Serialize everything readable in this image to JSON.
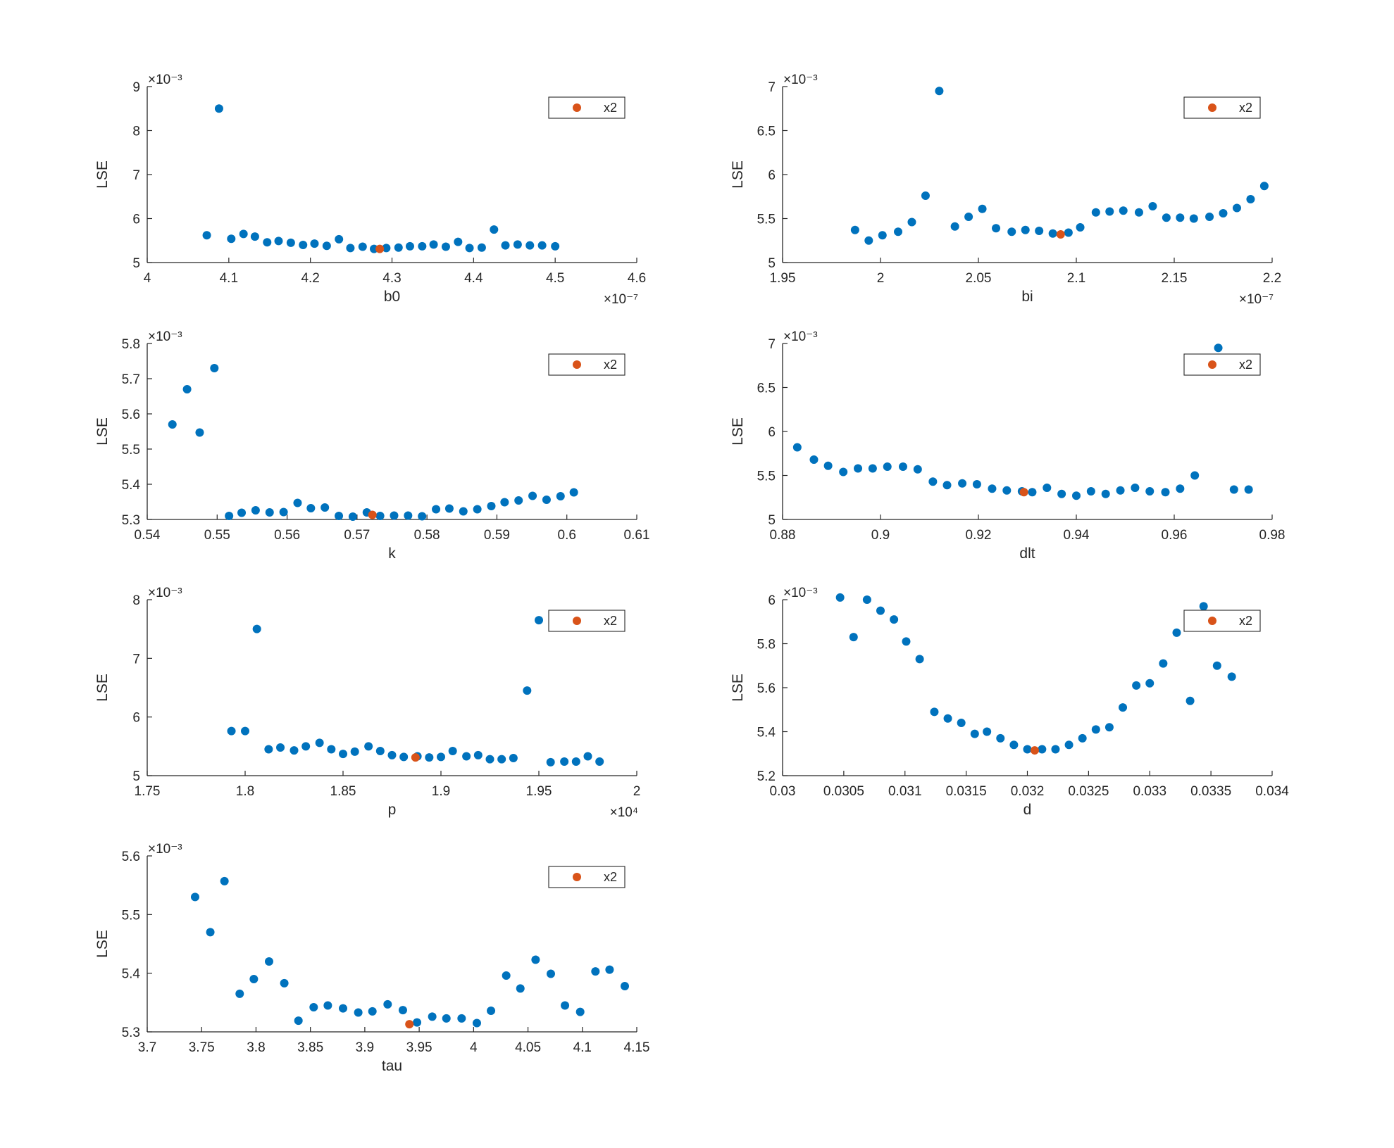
{
  "figure": {
    "background": "#ffffff",
    "colors": {
      "data": "#0072BD",
      "best": "#D95319",
      "axis": "#262626"
    }
  },
  "chart_data": [
    {
      "type": "scatter",
      "id": "b0",
      "xlabel": "b0",
      "ylabel": "LSE",
      "xlim": [
        4,
        4.6
      ],
      "ylim": [
        5,
        9
      ],
      "xticks": [
        "4",
        "4.1",
        "4.2",
        "4.3",
        "4.4",
        "4.5",
        "4.6"
      ],
      "yticks": [
        "5",
        "6",
        "7",
        "8",
        "9"
      ],
      "x_exponent": "×10⁻⁷",
      "y_exponent": "×10⁻³",
      "legend": "x2",
      "series": [
        {
          "x": [
            4.073,
            4.088,
            4.103,
            4.118,
            4.132,
            4.147,
            4.161,
            4.176,
            4.191,
            4.205,
            4.22,
            4.235,
            4.249,
            4.264,
            4.278,
            4.293,
            4.308,
            4.322,
            4.337,
            4.351,
            4.366,
            4.381,
            4.395,
            4.41,
            4.425,
            4.439,
            4.454,
            4.469,
            4.484,
            4.5
          ],
          "y": [
            5.62,
            8.5,
            5.54,
            5.65,
            5.59,
            5.46,
            5.49,
            5.45,
            5.4,
            5.43,
            5.38,
            5.53,
            5.33,
            5.36,
            5.31,
            5.33,
            5.34,
            5.37,
            5.37,
            5.41,
            5.36,
            5.47,
            5.33,
            5.34,
            5.75,
            5.39,
            5.41,
            5.39,
            5.39,
            5.37
          ]
        },
        {
          "name": "x2",
          "x": [
            4.285
          ],
          "y": [
            5.31
          ]
        }
      ]
    },
    {
      "type": "scatter",
      "id": "bi",
      "xlabel": "bi",
      "ylabel": "LSE",
      "xlim": [
        1.95,
        2.2
      ],
      "ylim": [
        5,
        7
      ],
      "xticks": [
        "1.95",
        "2",
        "2.05",
        "2.1",
        "2.15",
        "2.2"
      ],
      "yticks": [
        "5",
        "5.5",
        "6",
        "6.5",
        "7"
      ],
      "x_exponent": "×10⁻⁷",
      "y_exponent": "×10⁻³",
      "legend": "x2",
      "series": [
        {
          "x": [
            1.987,
            1.994,
            2.001,
            2.009,
            2.016,
            2.023,
            2.03,
            2.038,
            2.045,
            2.052,
            2.059,
            2.067,
            2.074,
            2.081,
            2.088,
            2.096,
            2.102,
            2.11,
            2.117,
            2.124,
            2.132,
            2.139,
            2.146,
            2.153,
            2.16,
            2.168,
            2.175,
            2.182,
            2.189,
            2.196
          ],
          "y": [
            5.37,
            5.25,
            5.31,
            5.35,
            5.46,
            5.76,
            6.95,
            5.41,
            5.52,
            5.61,
            5.39,
            5.35,
            5.37,
            5.36,
            5.33,
            5.34,
            5.4,
            5.57,
            5.58,
            5.59,
            5.57,
            5.64,
            5.51,
            5.51,
            5.5,
            5.52,
            5.56,
            5.62,
            5.72,
            5.87
          ]
        },
        {
          "name": "x2",
          "x": [
            2.092
          ],
          "y": [
            5.32
          ]
        }
      ]
    },
    {
      "type": "scatter",
      "id": "k",
      "xlabel": "k",
      "ylabel": "LSE",
      "xlim": [
        0.54,
        0.61
      ],
      "ylim": [
        5.3,
        5.8
      ],
      "xticks": [
        "0.54",
        "0.55",
        "0.56",
        "0.57",
        "0.58",
        "0.59",
        "0.6",
        "0.61"
      ],
      "yticks": [
        "5.3",
        "5.4",
        "5.5",
        "5.6",
        "5.7",
        "5.8"
      ],
      "x_exponent": "",
      "y_exponent": "×10⁻³",
      "legend": "x2",
      "series": [
        {
          "x": [
            0.5436,
            0.5457,
            0.5475,
            0.5496,
            0.5517,
            0.5535,
            0.5555,
            0.5575,
            0.5595,
            0.5615,
            0.5634,
            0.5654,
            0.5674,
            0.5694,
            0.5714,
            0.5733,
            0.5753,
            0.5773,
            0.5793,
            0.5813,
            0.5832,
            0.5852,
            0.5872,
            0.5892,
            0.5911,
            0.5931,
            0.5951,
            0.5971,
            0.5991,
            0.601
          ],
          "y": [
            5.57,
            5.67,
            5.547,
            5.73,
            5.31,
            5.319,
            5.326,
            5.32,
            5.321,
            5.347,
            5.332,
            5.334,
            5.31,
            5.308,
            5.32,
            5.31,
            5.311,
            5.311,
            5.309,
            5.329,
            5.331,
            5.323,
            5.329,
            5.338,
            5.349,
            5.354,
            5.367,
            5.356,
            5.366,
            5.377
          ]
        },
        {
          "name": "x2",
          "x": [
            0.5722
          ],
          "y": [
            5.313
          ]
        }
      ]
    },
    {
      "type": "scatter",
      "id": "dlt",
      "xlabel": "dlt",
      "ylabel": "LSE",
      "xlim": [
        0.88,
        0.98
      ],
      "ylim": [
        5,
        7
      ],
      "xticks": [
        "0.88",
        "0.9",
        "0.92",
        "0.94",
        "0.96",
        "0.98"
      ],
      "yticks": [
        "5",
        "5.5",
        "6",
        "6.5",
        "7"
      ],
      "x_exponent": "",
      "y_exponent": "×10⁻³",
      "legend": "x2",
      "series": [
        {
          "x": [
            0.883,
            0.8864,
            0.8893,
            0.8924,
            0.8954,
            0.8984,
            0.9014,
            0.9046,
            0.9076,
            0.9107,
            0.9136,
            0.9167,
            0.9197,
            0.9228,
            0.9258,
            0.9289,
            0.931,
            0.934,
            0.937,
            0.94,
            0.943,
            0.946,
            0.949,
            0.952,
            0.955,
            0.9582,
            0.9612,
            0.9642,
            0.969,
            0.9722,
            0.9752
          ],
          "y": [
            5.82,
            5.68,
            5.61,
            5.54,
            5.58,
            5.58,
            5.6,
            5.6,
            5.57,
            5.43,
            5.39,
            5.41,
            5.4,
            5.35,
            5.33,
            5.32,
            5.31,
            5.36,
            5.29,
            5.27,
            5.32,
            5.29,
            5.33,
            5.36,
            5.32,
            5.31,
            5.35,
            5.5,
            6.95,
            5.34,
            5.34
          ]
        },
        {
          "name": "x2",
          "x": [
            0.9293
          ],
          "y": [
            5.31
          ]
        }
      ]
    },
    {
      "type": "scatter",
      "id": "p",
      "xlabel": "p",
      "ylabel": "LSE",
      "xlim": [
        1.75,
        2
      ],
      "ylim": [
        5,
        8
      ],
      "xticks": [
        "1.75",
        "1.8",
        "1.85",
        "1.9",
        "1.95",
        "2"
      ],
      "yticks": [
        "5",
        "6",
        "7",
        "8"
      ],
      "x_exponent": "×10⁴",
      "y_exponent": "×10⁻³",
      "legend": "x2",
      "series": [
        {
          "x": [
            1.793,
            1.8,
            1.806,
            1.812,
            1.818,
            1.825,
            1.831,
            1.838,
            1.844,
            1.85,
            1.856,
            1.863,
            1.869,
            1.875,
            1.881,
            1.888,
            1.894,
            1.9,
            1.906,
            1.913,
            1.919,
            1.925,
            1.931,
            1.937,
            1.944,
            1.95,
            1.956,
            1.963,
            1.969,
            1.975,
            1.981
          ],
          "y": [
            5.76,
            5.76,
            7.5,
            5.45,
            5.48,
            5.43,
            5.5,
            5.56,
            5.45,
            5.37,
            5.41,
            5.5,
            5.42,
            5.35,
            5.32,
            5.33,
            5.31,
            5.32,
            5.42,
            5.33,
            5.35,
            5.28,
            5.28,
            5.3,
            6.45,
            7.65,
            5.23,
            5.24,
            5.24,
            5.33,
            5.24
          ]
        },
        {
          "name": "x2",
          "x": [
            1.887
          ],
          "y": [
            5.31
          ]
        }
      ]
    },
    {
      "type": "scatter",
      "id": "d",
      "xlabel": "d",
      "ylabel": "LSE",
      "xlim": [
        0.03,
        0.034
      ],
      "ylim": [
        5.2,
        6
      ],
      "xticks": [
        "0.03",
        "0.0305",
        "0.031",
        "0.0315",
        "0.032",
        "0.0325",
        "0.033",
        "0.0335",
        "0.034"
      ],
      "yticks": [
        "5.2",
        "5.4",
        "5.6",
        "5.8",
        "6"
      ],
      "x_exponent": "",
      "y_exponent": "×10⁻³",
      "legend": "x2",
      "series": [
        {
          "x": [
            0.03047,
            0.03058,
            0.03069,
            0.0308,
            0.03091,
            0.03101,
            0.03112,
            0.03124,
            0.03135,
            0.03146,
            0.03157,
            0.03167,
            0.03178,
            0.03189,
            0.032,
            0.03212,
            0.03223,
            0.03234,
            0.03245,
            0.03256,
            0.03267,
            0.03278,
            0.03289,
            0.033,
            0.03311,
            0.03322,
            0.03333,
            0.03344,
            0.03355,
            0.03367
          ],
          "y": [
            6.01,
            5.83,
            6.0,
            5.95,
            5.91,
            5.81,
            5.73,
            5.49,
            5.46,
            5.44,
            5.39,
            5.4,
            5.37,
            5.34,
            5.32,
            5.32,
            5.32,
            5.34,
            5.37,
            5.41,
            5.42,
            5.51,
            5.61,
            5.62,
            5.71,
            5.85,
            5.54,
            5.97,
            5.7,
            5.65
          ]
        },
        {
          "name": "x2",
          "x": [
            0.03206
          ],
          "y": [
            5.315
          ]
        }
      ]
    },
    {
      "type": "scatter",
      "id": "tau",
      "xlabel": "tau",
      "ylabel": "LSE",
      "xlim": [
        3.7,
        4.15
      ],
      "ylim": [
        5.3,
        5.6
      ],
      "xticks": [
        "3.7",
        "3.75",
        "3.8",
        "3.85",
        "3.9",
        "3.95",
        "4",
        "4.05",
        "4.1",
        "4.15"
      ],
      "yticks": [
        "5.3",
        "5.4",
        "5.5",
        "5.6"
      ],
      "x_exponent": "",
      "y_exponent": "×10⁻³",
      "legend": "x2",
      "series": [
        {
          "x": [
            3.744,
            3.758,
            3.771,
            3.785,
            3.798,
            3.812,
            3.826,
            3.839,
            3.853,
            3.866,
            3.88,
            3.894,
            3.907,
            3.921,
            3.935,
            3.948,
            3.962,
            3.975,
            3.989,
            4.003,
            4.016,
            4.03,
            4.043,
            4.057,
            4.071,
            4.084,
            4.098,
            4.112,
            4.125,
            4.139
          ],
          "y": [
            5.53,
            5.47,
            5.557,
            5.365,
            5.39,
            5.42,
            5.383,
            5.319,
            5.342,
            5.345,
            5.34,
            5.333,
            5.335,
            5.347,
            5.337,
            5.316,
            5.326,
            5.323,
            5.323,
            5.315,
            5.336,
            5.396,
            5.374,
            5.423,
            5.399,
            5.345,
            5.334,
            5.403,
            5.406,
            5.378
          ]
        },
        {
          "name": "x2",
          "x": [
            3.941
          ],
          "y": [
            5.313
          ]
        }
      ]
    }
  ]
}
